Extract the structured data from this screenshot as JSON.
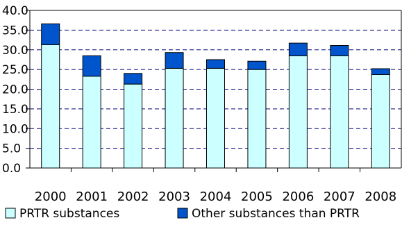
{
  "chart_data": {
    "type": "bar",
    "stacked": true,
    "categories": [
      "2000",
      "2001",
      "2002",
      "2003",
      "2004",
      "2005",
      "2006",
      "2007",
      "2008"
    ],
    "series": [
      {
        "name": "PRTR substances",
        "values": [
          31.3,
          23.3,
          21.3,
          25.3,
          25.3,
          25.0,
          28.5,
          28.5,
          23.7
        ]
      },
      {
        "name": "Other substances than PRTR",
        "values": [
          5.3,
          5.2,
          2.7,
          4.0,
          2.2,
          2.1,
          3.2,
          2.6,
          1.5
        ]
      }
    ],
    "ylim": [
      0,
      40
    ],
    "ytick_labels": [
      "0.0",
      "5.0",
      "10.0",
      "15.0",
      "20.0",
      "25.0",
      "30.0",
      "35.0",
      "40.0"
    ],
    "grid": "dashed horizontal",
    "legend_position": "bottom",
    "colors": {
      "PRTR substances": "#ccffff",
      "Other substances than PRTR": "#0055cc"
    }
  }
}
